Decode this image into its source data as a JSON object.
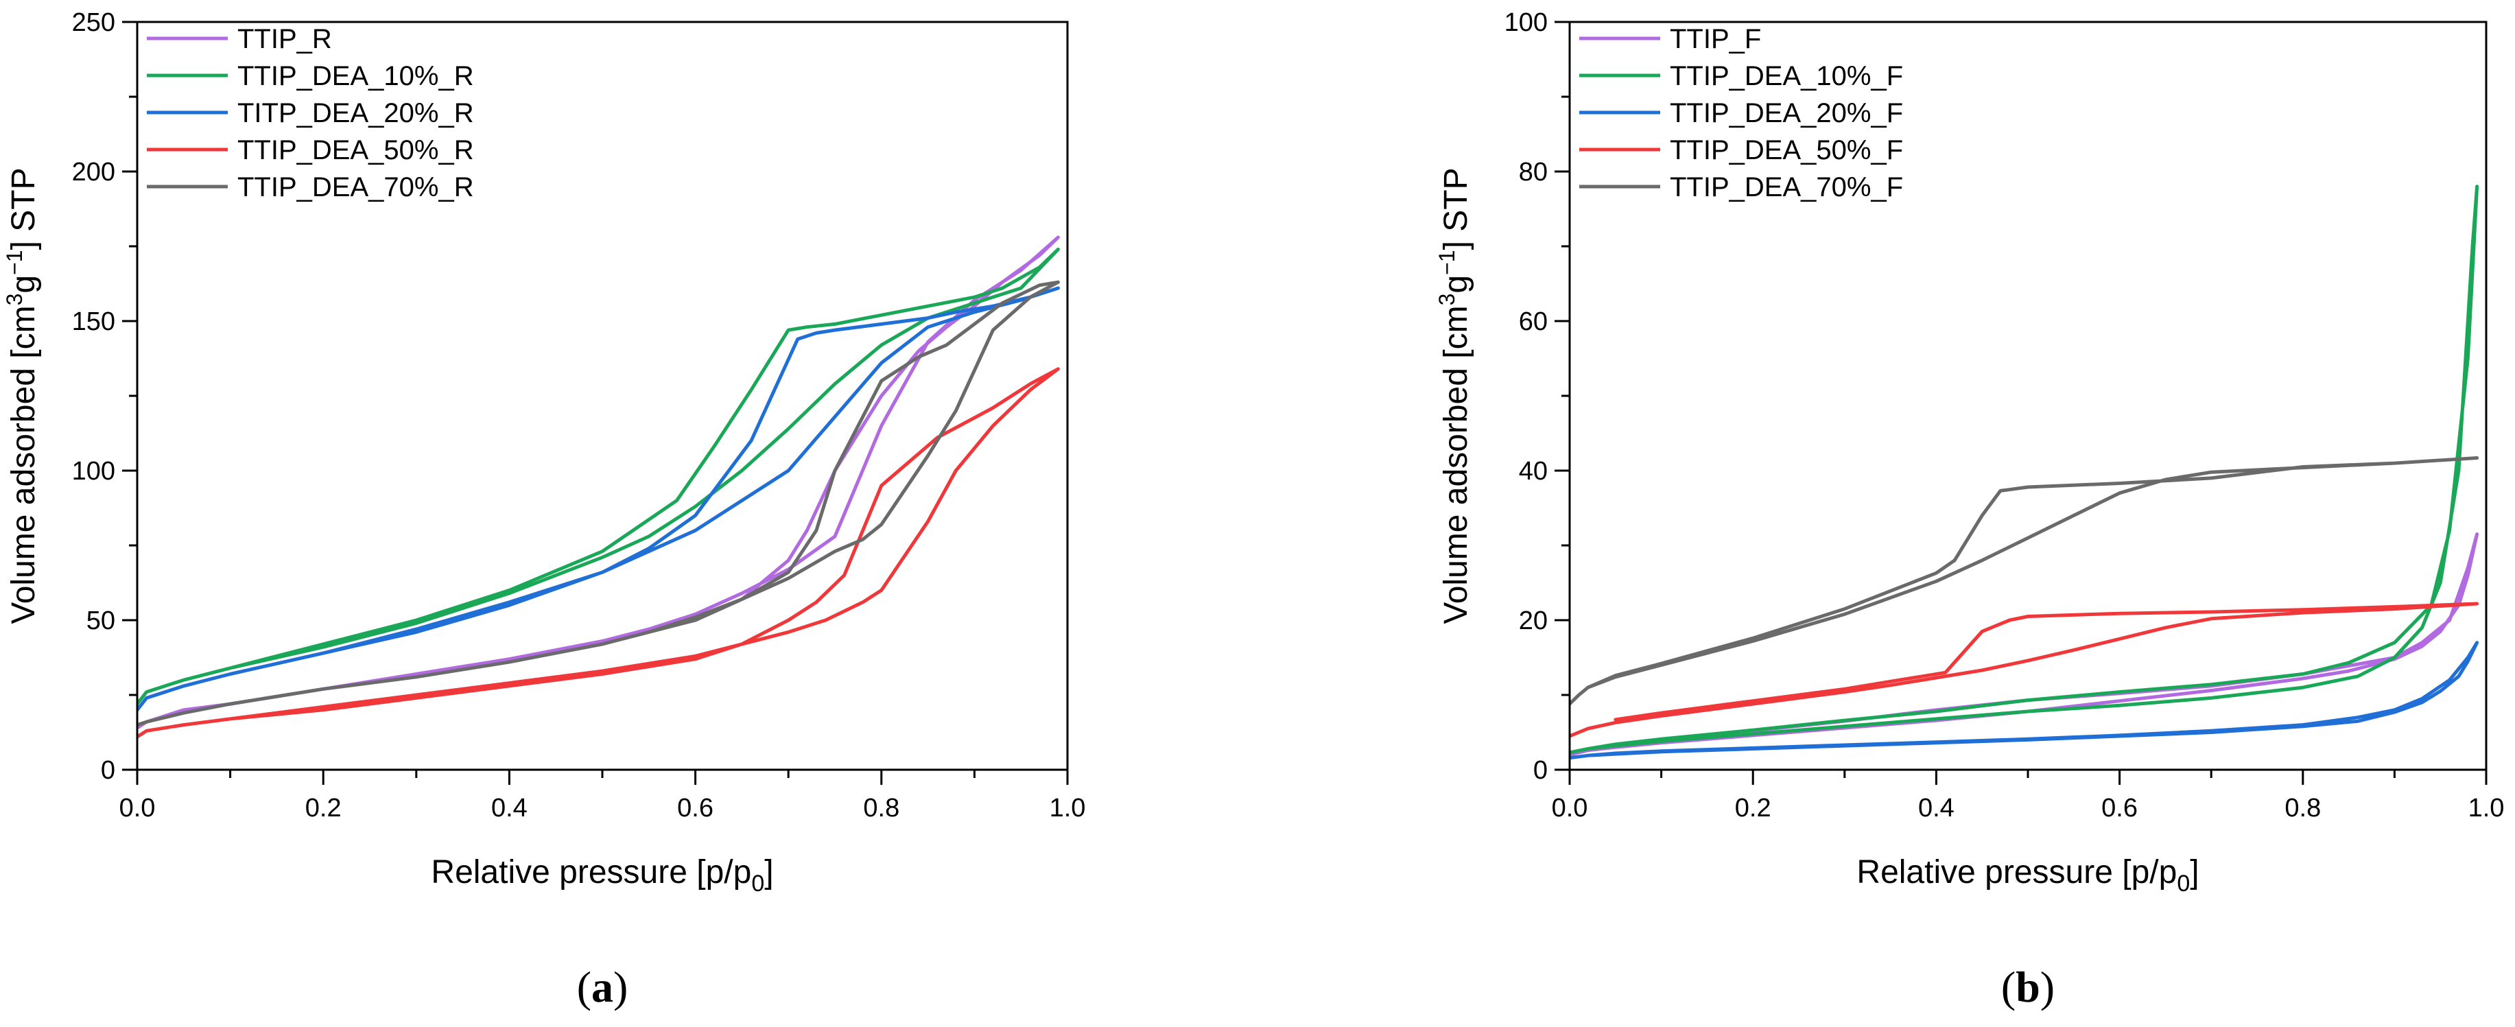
{
  "colors": {
    "purple": "#b26ae0",
    "green": "#1aa858",
    "blue": "#1f6fd6",
    "red": "#f0373a",
    "gray": "#6a6a6a"
  },
  "chart_data": [
    {
      "type": "line",
      "panel_label": "a",
      "xlabel": "Relative pressure [p/p",
      "xlabel_sub": "0",
      "xlabel_suffix": "]",
      "ylabel": {
        "pre": "Volume adsorbed [cm",
        "sup1": "3",
        "mid": "g",
        "sup2": "−1",
        "post": "] STP"
      },
      "xlim": [
        0,
        1
      ],
      "ylim": [
        0,
        250
      ],
      "xticks": [
        0.0,
        0.2,
        0.4,
        0.6,
        0.8,
        1.0
      ],
      "xtick_labels": [
        "0.0",
        "0.2",
        "0.4",
        "0.6",
        "0.8",
        "1.0"
      ],
      "yticks": [
        0,
        50,
        100,
        150,
        200,
        250
      ],
      "ytick_labels": [
        "0",
        "50",
        "100",
        "150",
        "200",
        "250"
      ],
      "series": [
        {
          "name": "TTIP_R",
          "color": "purple",
          "x": [
            0.0,
            0.01,
            0.05,
            0.1,
            0.2,
            0.3,
            0.4,
            0.5,
            0.55,
            0.6,
            0.65,
            0.7,
            0.75,
            0.8,
            0.85,
            0.9,
            0.95,
            0.99,
            0.97,
            0.93,
            0.9,
            0.87,
            0.84,
            0.8,
            0.75,
            0.72,
            0.7,
            0.65,
            0.6,
            0.5,
            0.4,
            0.3,
            0.2,
            0.1,
            0.05,
            0.01
          ],
          "y": [
            14,
            16,
            20,
            22,
            27,
            32,
            37,
            43,
            47,
            52,
            59,
            67,
            78,
            115,
            143,
            157,
            167,
            178,
            172,
            163,
            155,
            148,
            140,
            125,
            100,
            80,
            70,
            57,
            50,
            43,
            37,
            32,
            27,
            22,
            20,
            16
          ]
        },
        {
          "name": "TTIP_DEA_10%_R",
          "color": "green",
          "x": [
            0.0,
            0.01,
            0.05,
            0.1,
            0.2,
            0.3,
            0.4,
            0.5,
            0.55,
            0.6,
            0.65,
            0.7,
            0.75,
            0.8,
            0.85,
            0.9,
            0.95,
            0.99,
            0.97,
            0.93,
            0.9,
            0.85,
            0.8,
            0.75,
            0.72,
            0.7,
            0.66,
            0.62,
            0.58,
            0.5,
            0.4,
            0.3,
            0.2,
            0.1,
            0.05,
            0.01
          ],
          "y": [
            22,
            26,
            30,
            34,
            41,
            49,
            59,
            71,
            78,
            88,
            100,
            114,
            129,
            142,
            151,
            156,
            161,
            174,
            168,
            161,
            158,
            155,
            152,
            149,
            148,
            147,
            127,
            108,
            90,
            73,
            60,
            50,
            42,
            34,
            30,
            26
          ]
        },
        {
          "name": "TITP_DEA_20%_R",
          "color": "blue",
          "x": [
            0.0,
            0.01,
            0.05,
            0.1,
            0.2,
            0.3,
            0.4,
            0.5,
            0.55,
            0.6,
            0.65,
            0.7,
            0.75,
            0.8,
            0.85,
            0.9,
            0.95,
            0.99,
            0.96,
            0.92,
            0.88,
            0.85,
            0.8,
            0.75,
            0.73,
            0.71,
            0.66,
            0.6,
            0.55,
            0.5,
            0.4,
            0.3,
            0.2,
            0.1,
            0.05,
            0.01
          ],
          "y": [
            20,
            24,
            28,
            32,
            39,
            47,
            56,
            66,
            73,
            80,
            90,
            100,
            118,
            136,
            148,
            153,
            157,
            161,
            158,
            155,
            153,
            151,
            149,
            147,
            146,
            144,
            110,
            85,
            74,
            66,
            55,
            46,
            39,
            32,
            28,
            24
          ]
        },
        {
          "name": "TTIP_DEA_50%_R",
          "color": "red",
          "x": [
            0.0,
            0.01,
            0.05,
            0.1,
            0.2,
            0.3,
            0.4,
            0.5,
            0.6,
            0.65,
            0.7,
            0.74,
            0.78,
            0.8,
            0.85,
            0.88,
            0.92,
            0.96,
            0.99,
            0.96,
            0.92,
            0.86,
            0.8,
            0.78,
            0.76,
            0.73,
            0.7,
            0.65,
            0.6,
            0.5,
            0.4,
            0.3,
            0.2,
            0.1,
            0.05,
            0.01
          ],
          "y": [
            11,
            13,
            15,
            17,
            21,
            25,
            29,
            33,
            38,
            42,
            46,
            50,
            56,
            60,
            83,
            100,
            115,
            127,
            134,
            129,
            121,
            111,
            95,
            80,
            65,
            56,
            50,
            42,
            37,
            32,
            28,
            24,
            20,
            17,
            15,
            13
          ]
        },
        {
          "name": "TTIP_DEA_70%_R",
          "color": "gray",
          "x": [
            0.0,
            0.01,
            0.05,
            0.1,
            0.2,
            0.3,
            0.4,
            0.5,
            0.55,
            0.6,
            0.65,
            0.7,
            0.75,
            0.78,
            0.8,
            0.85,
            0.88,
            0.92,
            0.96,
            0.99,
            0.97,
            0.93,
            0.9,
            0.87,
            0.84,
            0.8,
            0.75,
            0.73,
            0.7,
            0.65,
            0.6,
            0.5,
            0.4,
            0.3,
            0.2,
            0.1,
            0.05,
            0.01
          ],
          "y": [
            15,
            16,
            19,
            22,
            27,
            31,
            36,
            42,
            46,
            51,
            57,
            64,
            73,
            77,
            82,
            105,
            120,
            147,
            158,
            163,
            162,
            156,
            149,
            142,
            138,
            130,
            100,
            80,
            66,
            57,
            50,
            42,
            36,
            31,
            27,
            22,
            19,
            16
          ]
        }
      ]
    },
    {
      "type": "line",
      "panel_label": "b",
      "xlabel": "Relative pressure [p/p",
      "xlabel_sub": "0",
      "xlabel_suffix": "]",
      "ylabel": {
        "pre": "Volume adsorbed [cm",
        "sup1": "3",
        "mid": "g",
        "sup2": "−1",
        "post": "] STP"
      },
      "xlim": [
        0,
        1
      ],
      "ylim": [
        0,
        100
      ],
      "xticks": [
        0.0,
        0.2,
        0.4,
        0.6,
        0.8,
        1.0
      ],
      "xtick_labels": [
        "0.0",
        "0.2",
        "0.4",
        "0.6",
        "0.8",
        "1.0"
      ],
      "yticks": [
        0,
        20,
        40,
        60,
        80,
        100
      ],
      "ytick_labels": [
        "0",
        "20",
        "40",
        "60",
        "80",
        "100"
      ],
      "series": [
        {
          "name": "TTIP_F",
          "color": "purple",
          "x": [
            0.0,
            0.02,
            0.05,
            0.1,
            0.2,
            0.3,
            0.4,
            0.5,
            0.6,
            0.7,
            0.8,
            0.85,
            0.9,
            0.93,
            0.95,
            0.97,
            0.98,
            0.99,
            0.98,
            0.96,
            0.93,
            0.9,
            0.8,
            0.7,
            0.6,
            0.5,
            0.4,
            0.3,
            0.2,
            0.1,
            0.05,
            0.02
          ],
          "y": [
            2,
            2.6,
            3,
            3.6,
            4.6,
            5.6,
            6.6,
            7.8,
            9.2,
            10.6,
            12.2,
            13.2,
            14.8,
            16.5,
            18.5,
            22,
            26,
            31.5,
            27,
            20,
            17,
            15,
            12.8,
            11.2,
            10.2,
            9.3,
            8,
            6.5,
            5.2,
            4,
            3.2,
            2.6
          ]
        },
        {
          "name": "TTIP_DEA_10%_F",
          "color": "green",
          "x": [
            0.0,
            0.02,
            0.05,
            0.1,
            0.2,
            0.3,
            0.4,
            0.5,
            0.6,
            0.7,
            0.8,
            0.86,
            0.9,
            0.93,
            0.95,
            0.97,
            0.98,
            0.985,
            0.99,
            0.98,
            0.96,
            0.94,
            0.9,
            0.85,
            0.8,
            0.7,
            0.6,
            0.5,
            0.4,
            0.3,
            0.2,
            0.1,
            0.05,
            0.02
          ],
          "y": [
            2.3,
            2.8,
            3.2,
            3.8,
            4.8,
            5.8,
            6.8,
            7.8,
            8.6,
            9.6,
            11,
            12.5,
            15,
            19,
            25,
            40,
            60,
            70,
            78,
            55,
            32,
            22,
            17,
            14.3,
            12.8,
            11.4,
            10.4,
            9.3,
            7.8,
            6.6,
            5.3,
            4.1,
            3.4,
            2.8
          ]
        },
        {
          "name": "TTIP_DEA_20%_F",
          "color": "blue",
          "x": [
            0.0,
            0.02,
            0.05,
            0.1,
            0.2,
            0.3,
            0.4,
            0.5,
            0.6,
            0.7,
            0.8,
            0.86,
            0.9,
            0.93,
            0.95,
            0.97,
            0.98,
            0.99,
            0.98,
            0.96,
            0.93,
            0.9,
            0.86,
            0.8,
            0.7,
            0.6,
            0.5,
            0.4,
            0.3,
            0.2,
            0.1,
            0.05,
            0.02
          ],
          "y": [
            1.6,
            1.9,
            2.1,
            2.4,
            2.8,
            3.2,
            3.6,
            4,
            4.5,
            5,
            5.8,
            6.5,
            7.7,
            9,
            10.5,
            12.5,
            14.5,
            17,
            15,
            12,
            9.5,
            8,
            7,
            6,
            5.2,
            4.6,
            4.1,
            3.7,
            3.3,
            2.9,
            2.5,
            2.2,
            1.9
          ]
        },
        {
          "name": "TTIP_DEA_50%_F",
          "color": "red",
          "x": [
            0.0,
            0.02,
            0.05,
            0.1,
            0.2,
            0.3,
            0.35,
            0.4,
            0.45,
            0.5,
            0.55,
            0.6,
            0.65,
            0.7,
            0.8,
            0.9,
            0.99,
            0.9,
            0.8,
            0.7,
            0.6,
            0.5,
            0.48,
            0.45,
            0.41,
            0.35,
            0.3,
            0.2,
            0.1,
            0.05
          ],
          "y": [
            4.5,
            5.5,
            6.3,
            7.2,
            8.8,
            10.4,
            11.3,
            12.3,
            13.3,
            14.6,
            16,
            17.5,
            19,
            20.2,
            21,
            21.5,
            22.2,
            21.8,
            21.4,
            21.1,
            20.9,
            20.5,
            20,
            18.5,
            13,
            11.8,
            10.8,
            9.2,
            7.6,
            6.7
          ]
        },
        {
          "name": "TTIP_DEA_70%_F",
          "color": "gray",
          "x": [
            0.0,
            0.01,
            0.02,
            0.05,
            0.1,
            0.2,
            0.3,
            0.4,
            0.45,
            0.5,
            0.55,
            0.6,
            0.65,
            0.7,
            0.8,
            0.9,
            0.99,
            0.9,
            0.8,
            0.7,
            0.6,
            0.5,
            0.47,
            0.45,
            0.42,
            0.4,
            0.3,
            0.2,
            0.1,
            0.05,
            0.02
          ],
          "y": [
            8.8,
            10,
            11,
            12.4,
            14,
            17.2,
            20.8,
            25.2,
            28,
            31,
            34,
            37,
            38.8,
            39.8,
            40.4,
            41,
            41.7,
            41,
            40.5,
            39,
            38.3,
            37.8,
            37.3,
            34,
            28,
            26.3,
            21.5,
            17.6,
            14.2,
            12.6,
            11
          ]
        }
      ]
    }
  ]
}
